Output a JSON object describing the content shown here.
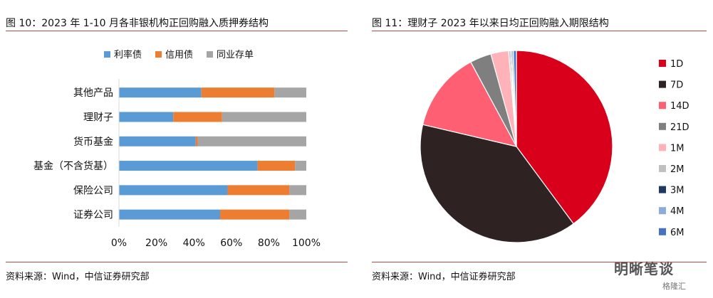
{
  "left": {
    "title": "图 10：2023 年 1-10 月各非银机构正回购融入质押券结构",
    "source": "资料来源：Wind，中信证券研究部"
  },
  "right": {
    "title": "图 11：理财子 2023 年以来日均正回购融入期限结构",
    "source": "资料来源：Wind，中信证券研究部"
  },
  "watermark": {
    "text": "明晰笔谈",
    "sub": "格隆汇"
  },
  "chart_data": [
    {
      "type": "bar",
      "orientation": "horizontal",
      "stacked": true,
      "categories": [
        "其他产品",
        "理财子",
        "货币基金",
        "基金（不含货基）",
        "保险公司",
        "证券公司"
      ],
      "series": [
        {
          "name": "利率债",
          "color": "#5b9bd5",
          "values": [
            44,
            29,
            41,
            74,
            58,
            54
          ]
        },
        {
          "name": "信用债",
          "color": "#ed7d31",
          "values": [
            39,
            26,
            1,
            20,
            33,
            37
          ]
        },
        {
          "name": "同业存单",
          "color": "#a5a5a5",
          "values": [
            17,
            45,
            58,
            6,
            9,
            9
          ]
        }
      ],
      "xlim": [
        0,
        100
      ],
      "xticks": [
        "0%",
        "20%",
        "40%",
        "60%",
        "80%",
        "100%"
      ],
      "legend": "top",
      "grid": false
    },
    {
      "type": "pie",
      "labels": [
        "1D",
        "7D",
        "14D",
        "21D",
        "1M",
        "2M",
        "3M",
        "4M",
        "6M"
      ],
      "values": [
        40.0,
        38.9,
        13.5,
        3.6,
        3.0,
        0.3,
        0.2,
        0.3,
        0.5
      ],
      "colors": [
        "#d9001b",
        "#2e2322",
        "#ff5f73",
        "#7f7f7f",
        "#ffb3b8",
        "#c0c0c0",
        "#1f3864",
        "#8faadc",
        "#4472c4"
      ],
      "legend": "right"
    }
  ]
}
